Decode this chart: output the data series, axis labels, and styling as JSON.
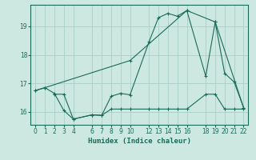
{
  "xlabel": "Humidex (Indice chaleur)",
  "bg_color": "#cce8e0",
  "grid_color": "#aacfc8",
  "line_color": "#1a6b5a",
  "xlim": [
    -0.5,
    22.5
  ],
  "ylim": [
    15.55,
    19.75
  ],
  "yticks": [
    16,
    17,
    18,
    19
  ],
  "xticks": [
    0,
    1,
    2,
    3,
    4,
    6,
    7,
    8,
    9,
    10,
    12,
    13,
    14,
    15,
    16,
    18,
    19,
    20,
    21,
    22
  ],
  "line1_x": [
    0,
    1,
    2,
    3,
    4,
    6,
    7,
    8,
    9,
    10,
    12,
    13,
    14,
    15,
    16,
    18,
    19,
    20,
    21,
    22
  ],
  "line1_y": [
    16.75,
    16.85,
    16.65,
    16.05,
    15.75,
    15.9,
    15.88,
    16.55,
    16.65,
    16.6,
    18.45,
    19.3,
    19.45,
    19.35,
    19.55,
    17.25,
    19.15,
    17.35,
    17.05,
    16.15
  ],
  "line2_x": [
    2,
    3,
    4,
    6,
    7,
    8,
    9,
    10,
    12,
    13,
    14,
    15,
    16,
    18,
    19,
    20,
    21,
    22
  ],
  "line2_y": [
    16.62,
    16.62,
    15.75,
    15.9,
    15.88,
    16.1,
    16.1,
    16.1,
    16.1,
    16.1,
    16.1,
    16.1,
    16.1,
    16.62,
    16.62,
    16.1,
    16.1,
    16.1
  ],
  "line3_x": [
    0,
    1,
    10,
    16,
    19,
    22
  ],
  "line3_y": [
    16.75,
    16.85,
    17.8,
    19.55,
    19.15,
    16.15
  ]
}
